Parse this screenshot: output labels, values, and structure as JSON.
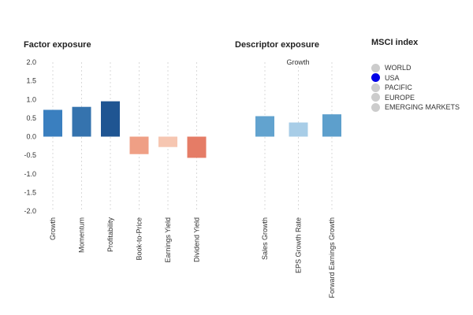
{
  "chart_data": [
    {
      "type": "bar",
      "title": "Factor exposure",
      "categories": [
        "Growth",
        "Momentum",
        "Profitability",
        "Book-to-Price",
        "Earnings Yield",
        "Dividend Yield"
      ],
      "values": [
        0.72,
        0.8,
        0.95,
        -0.47,
        -0.28,
        -0.57
      ],
      "colors": [
        "#3a7fbf",
        "#3573ae",
        "#1f5592",
        "#ef9f85",
        "#f6c6b1",
        "#e57c66"
      ],
      "ylim": [
        -2.0,
        2.0
      ],
      "yticks": [
        "2.0",
        "1.5",
        "1.0",
        "0.5",
        "0.0",
        "-0.5",
        "-1.0",
        "-1.5",
        "-2.0"
      ],
      "grid": true
    },
    {
      "type": "bar",
      "title": "Descriptor exposure",
      "subtitle": "Growth",
      "categories": [
        "Sales Growth",
        "EPS Growth Rate",
        "Forward Earnings Growth"
      ],
      "values": [
        0.55,
        0.38,
        0.6
      ],
      "colors": [
        "#62a3cf",
        "#a8cde7",
        "#5d9fcc"
      ],
      "ylim": [
        -2.0,
        2.0
      ],
      "grid": true
    }
  ],
  "legend": {
    "title": "MSCI index",
    "items": [
      {
        "label": "WORLD",
        "color": "#cccccc"
      },
      {
        "label": "USA",
        "color": "#0000e6"
      },
      {
        "label": "PACIFIC",
        "color": "#cccccc"
      },
      {
        "label": "EUROPE",
        "color": "#cccccc"
      },
      {
        "label": "EMERGING MARKETS",
        "color": "#cccccc"
      }
    ]
  }
}
